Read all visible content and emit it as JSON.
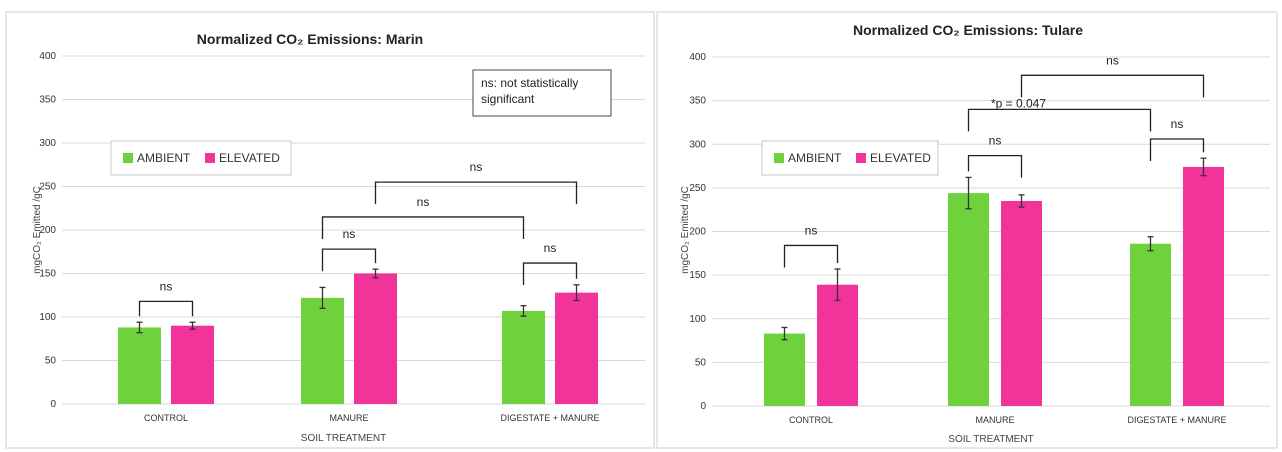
{
  "colors": {
    "ambient": "#6fd13c",
    "elevated": "#f2349a"
  },
  "chart_data": [
    {
      "type": "bar",
      "title": "Normalized CO₂ Emissions: Marin",
      "xlabel": "SOIL TREATMENT",
      "ylabel": "mgCO₂ Emitted /gC",
      "ylim": [
        0,
        400
      ],
      "yticks": [
        0,
        50,
        100,
        150,
        200,
        250,
        300,
        350,
        400
      ],
      "grid": true,
      "legend_position": "top-left",
      "categories": [
        "CONTROL",
        "MANURE",
        "DIGESTATE + MANURE"
      ],
      "series": [
        {
          "name": "AMBIENT",
          "values": [
            88,
            122,
            107
          ],
          "errors": [
            6,
            12,
            6
          ]
        },
        {
          "name": "ELEVATED",
          "values": [
            90,
            150,
            128
          ],
          "errors": [
            4,
            5,
            9
          ]
        }
      ],
      "annotation_box": "ns: not statistically significant",
      "brackets": [
        {
          "label": "ns",
          "from": [
            0,
            0
          ],
          "to": [
            0,
            1
          ],
          "y": 118
        },
        {
          "label": "ns",
          "from": [
            1,
            0
          ],
          "to": [
            1,
            1
          ],
          "y": 178
        },
        {
          "label": "ns",
          "from": [
            2,
            0
          ],
          "to": [
            2,
            1
          ],
          "y": 162
        },
        {
          "label": "ns",
          "from": [
            1,
            0
          ],
          "to": [
            2,
            0
          ],
          "y": 215
        },
        {
          "label": "ns",
          "from": [
            1,
            1
          ],
          "to": [
            2,
            1
          ],
          "y": 255
        }
      ]
    },
    {
      "type": "bar",
      "title": "Normalized CO₂ Emissions: Tulare",
      "xlabel": "SOIL TREATMENT",
      "ylabel": "mgCO₂ Emitted /gC",
      "ylim": [
        0,
        400
      ],
      "yticks": [
        0,
        50,
        100,
        150,
        200,
        250,
        300,
        350,
        400
      ],
      "grid": true,
      "legend_position": "top-left",
      "categories": [
        "CONTROL",
        "MANURE",
        "DIGESTATE + MANURE"
      ],
      "series": [
        {
          "name": "AMBIENT",
          "values": [
            83,
            244,
            186
          ],
          "errors": [
            7,
            18,
            8
          ]
        },
        {
          "name": "ELEVATED",
          "values": [
            139,
            235,
            274
          ],
          "errors": [
            18,
            7,
            10
          ]
        }
      ],
      "brackets": [
        {
          "label": "ns",
          "from": [
            0,
            0
          ],
          "to": [
            0,
            1
          ],
          "y": 184
        },
        {
          "label": "ns",
          "from": [
            1,
            0
          ],
          "to": [
            1,
            1
          ],
          "y": 287
        },
        {
          "label": "ns",
          "from": [
            2,
            0
          ],
          "to": [
            2,
            1
          ],
          "y": 306
        },
        {
          "label": "*p = 0.047",
          "from": [
            1,
            0
          ],
          "to": [
            2,
            0
          ],
          "y": 340
        },
        {
          "label": "ns",
          "from": [
            1,
            1
          ],
          "to": [
            2,
            1
          ],
          "y": 379
        }
      ]
    }
  ]
}
